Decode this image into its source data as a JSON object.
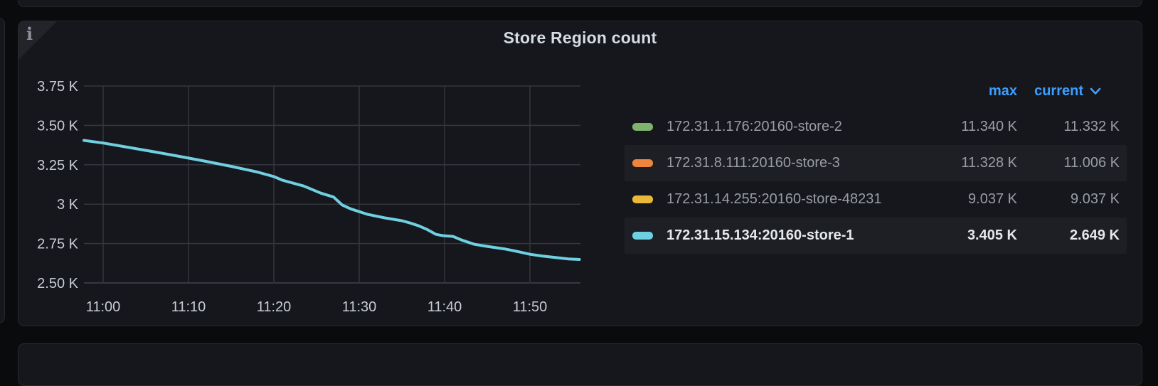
{
  "colors": {
    "page_bg": "#0a0b0d",
    "panel_bg": "#16171c",
    "panel_border": "#26282e",
    "grid": "#34373d",
    "axis_bottom": "#42454c",
    "tick_text": "#c7ccd4",
    "legend_text_dim": "#999da5",
    "legend_text_emph": "#e4e7ec",
    "accent_blue": "#3d9eff",
    "series_green": "#7EB26D",
    "series_orange": "#EF843C",
    "series_yellow": "#EAB839",
    "series_cyan": "#6ED0E0"
  },
  "panel": {
    "title": "Store Region count",
    "info_icon_glyph": "i"
  },
  "legend": {
    "columns": {
      "max": "max",
      "current": "current"
    },
    "sorted_by": "current",
    "sort_direction": "desc",
    "rows": [
      {
        "label": "172.31.1.176:20160-store-2",
        "color": "#7EB26D",
        "max": "11.340 K",
        "current": "11.332 K",
        "emphasis": false
      },
      {
        "label": "172.31.8.111:20160-store-3",
        "color": "#EF843C",
        "max": "11.328 K",
        "current": "11.006 K",
        "emphasis": false
      },
      {
        "label": "172.31.14.255:20160-store-48231",
        "color": "#EAB839",
        "max": "9.037 K",
        "current": "9.037 K",
        "emphasis": false
      },
      {
        "label": "172.31.15.134:20160-store-1",
        "color": "#6ED0E0",
        "max": "3.405 K",
        "current": "2.649 K",
        "emphasis": true
      }
    ]
  },
  "chart_data": {
    "type": "line",
    "title": "Store Region count",
    "grid": true,
    "legend_position": "right-table",
    "x_axis": {
      "unit": "time-of-day",
      "tick_labels": [
        "11:00",
        "11:10",
        "11:20",
        "11:30",
        "11:40",
        "11:50"
      ],
      "tick_minutes": [
        660,
        670,
        680,
        690,
        700,
        710
      ],
      "range_minutes": [
        657.75,
        715.8
      ]
    },
    "y_axis": {
      "unit": "K",
      "tick_labels": [
        "3.75 K",
        "3.50 K",
        "3.25 K",
        "3 K",
        "2.75 K",
        "2.50 K"
      ],
      "tick_values": [
        3.75,
        3.5,
        3.25,
        3.0,
        2.75,
        2.5
      ],
      "range": [
        2.5,
        3.875
      ]
    },
    "series": [
      {
        "name": "172.31.1.176:20160-store-2",
        "color": "#7EB26D",
        "max_k": 11.34,
        "current_k": 11.332
      },
      {
        "name": "172.31.8.111:20160-store-3",
        "color": "#EF843C",
        "max_k": 11.328,
        "current_k": 11.006
      },
      {
        "name": "172.31.14.255:20160-store-48231",
        "color": "#EAB839",
        "max_k": 9.037,
        "current_k": 9.037
      },
      {
        "name": "172.31.15.134:20160-store-1",
        "color": "#6ED0E0",
        "max_k": 3.405,
        "current_k": 2.649,
        "points_minutes_k": [
          [
            657.75,
            3.405
          ],
          [
            660,
            3.388
          ],
          [
            663,
            3.36
          ],
          [
            666,
            3.332
          ],
          [
            669,
            3.303
          ],
          [
            672,
            3.272
          ],
          [
            675,
            3.24
          ],
          [
            678,
            3.205
          ],
          [
            680,
            3.175
          ],
          [
            681,
            3.152
          ],
          [
            683.5,
            3.115
          ],
          [
            685.5,
            3.07
          ],
          [
            687,
            3.045
          ],
          [
            688,
            2.995
          ],
          [
            689,
            2.97
          ],
          [
            691,
            2.935
          ],
          [
            693,
            2.913
          ],
          [
            695,
            2.895
          ],
          [
            696,
            2.88
          ],
          [
            697,
            2.862
          ],
          [
            698,
            2.838
          ],
          [
            699,
            2.808
          ],
          [
            699.8,
            2.8
          ],
          [
            701,
            2.795
          ],
          [
            702,
            2.772
          ],
          [
            703.5,
            2.745
          ],
          [
            705,
            2.732
          ],
          [
            707,
            2.716
          ],
          [
            708.5,
            2.7
          ],
          [
            710,
            2.682
          ],
          [
            711.5,
            2.67
          ],
          [
            713,
            2.661
          ],
          [
            714.5,
            2.652
          ],
          [
            715.8,
            2.649
          ]
        ]
      }
    ]
  }
}
